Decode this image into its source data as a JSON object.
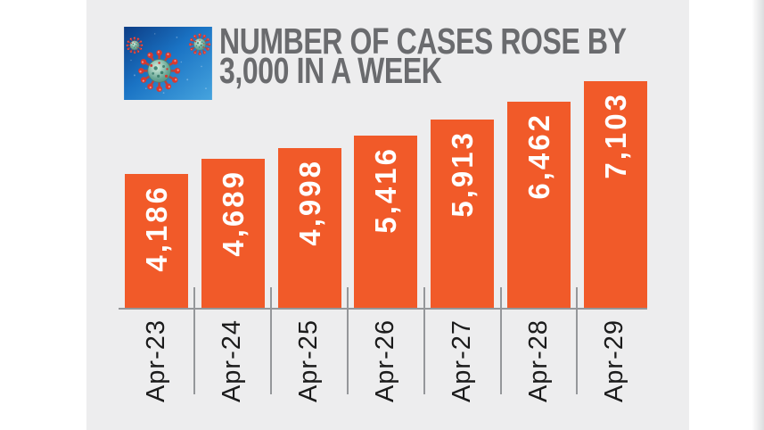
{
  "header": {
    "title_line1": "NUMBER OF CASES ROSE BY",
    "title_line2": "3,000 IN A WEEK",
    "title_color": "#6a6b6e",
    "virus_image_alt": "coronavirus-illustration"
  },
  "chart_data": {
    "type": "bar",
    "title": "NUMBER OF CASES ROSE BY 3,000 IN A WEEK",
    "categories": [
      "Apr-23",
      "Apr-24",
      "Apr-25",
      "Apr-26",
      "Apr-27",
      "Apr-28",
      "Apr-29"
    ],
    "values": [
      4186,
      4689,
      4998,
      5416,
      5913,
      6462,
      7103
    ],
    "value_labels": [
      "4,186",
      "4,689",
      "4,998",
      "5,416",
      "5,913",
      "6,462",
      "7,103"
    ],
    "xlabel": "",
    "ylabel": "",
    "ylim": [
      0,
      7500
    ],
    "grid": false,
    "legend": false,
    "orientation": "vertical",
    "value_labels_rotated": true,
    "category_labels_rotated": true,
    "bar_color": "#f15a29",
    "value_label_color": "#ffffff",
    "category_label_color": "#1b1b1b",
    "axis_line_color": "#95979a",
    "panel_background": "#ededee"
  }
}
